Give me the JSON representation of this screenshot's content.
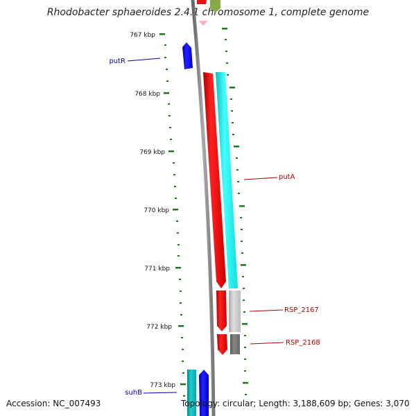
{
  "title": "Rhodobacter sphaeroides 2.4.1 chromosome 1, complete genome",
  "footer": {
    "accession": "Accession: NC_007493",
    "topology": "Topology: circular; Length: 3,188,609 bp; Genes: 3,070"
  },
  "scale_labels": [
    "767 kbp",
    "768 kbp",
    "769 kbp",
    "770 kbp",
    "771 kbp",
    "772 kbp",
    "773 kbp"
  ],
  "gene_labels": {
    "putR": "putR",
    "putA": "putA",
    "rsp2167": "RSP_2167",
    "rsp2168": "RSP_2168",
    "suhB": "suhB"
  },
  "colors": {
    "backbone": "#888888",
    "tick": "#1a7a1a",
    "reverse_label": "#0000aa",
    "forward_label": "#aa0000",
    "cds_red": "#ee1111",
    "cds_cyan": "#22eeee",
    "cds_blue": "#1111dd",
    "cds_teal": "#11bbbb",
    "cds_gray_light": "#cccccc",
    "cds_gray_dark": "#777777",
    "cds_pink": "#ffaacc",
    "cds_olive": "#88aa44"
  }
}
